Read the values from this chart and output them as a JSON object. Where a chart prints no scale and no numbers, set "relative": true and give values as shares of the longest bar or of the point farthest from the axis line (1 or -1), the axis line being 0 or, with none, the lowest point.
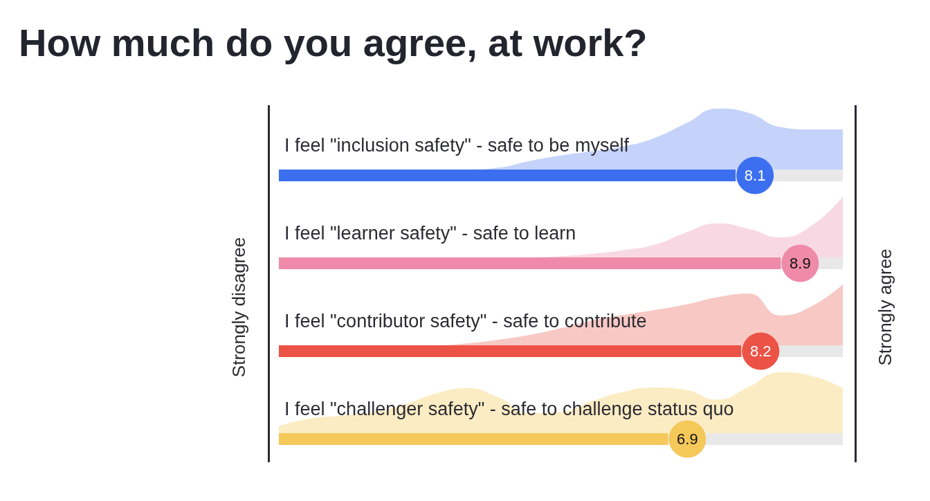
{
  "chart_data": [
    {
      "type": "bar",
      "orientation": "horizontal",
      "title": "How much do you agree, at work?",
      "ylabel": "Strongly disagree",
      "y2label": "Strongly agree",
      "categories": [
        "I feel \"inclusion safety\" - safe to be myself",
        "I feel \"learner safety\" - safe to learn",
        "I feel \"contributor safety\" - safe to contribute",
        "I feel \"challenger safety\" - safe to challenge status quo"
      ],
      "values": [
        8.1,
        8.9,
        8.2,
        6.9
      ],
      "colors": [
        "#3c6ff0",
        "#ef8aab",
        "#ec5246",
        "#f5c85a"
      ],
      "tick_labels": false,
      "data_labels": true
    },
    {
      "type": "area",
      "relative": true,
      "categories": [
        null,
        null,
        null,
        null,
        null,
        null,
        null,
        null,
        null,
        null,
        null,
        null,
        null,
        null,
        null,
        null,
        null,
        null,
        null
      ],
      "series": [
        {
          "color": "#c5d3fa",
          "values": [
            0,
            0,
            0,
            0,
            0,
            0,
            0,
            0.03,
            0.14,
            0.23,
            0.3,
            0.38,
            0.52,
            0.76,
            1,
            0.93,
            0.7,
            0.66,
            0.66
          ]
        }
      ]
    },
    {
      "type": "area",
      "relative": true,
      "categories": [
        null,
        null,
        null,
        null,
        null,
        null,
        null,
        null,
        null,
        null,
        null,
        null,
        null,
        null,
        null,
        null,
        null,
        null,
        null
      ],
      "series": [
        {
          "color": "#f8d9e3",
          "values": [
            0,
            0,
            0,
            0,
            0,
            0,
            0,
            0,
            0,
            0.02,
            0.06,
            0.12,
            0.21,
            0.41,
            0.56,
            0.47,
            0.33,
            0.52,
            1
          ]
        }
      ]
    },
    {
      "type": "area",
      "relative": true,
      "categories": [
        null,
        null,
        null,
        null,
        null,
        null,
        null,
        null,
        null,
        null,
        null,
        null,
        null,
        null,
        null,
        null,
        null,
        null,
        null
      ],
      "series": [
        {
          "color": "#f8c8c4",
          "values": [
            0,
            0,
            0,
            0,
            0,
            0,
            0.03,
            0.09,
            0.17,
            0.28,
            0.41,
            0.5,
            0.58,
            0.67,
            0.79,
            0.85,
            0.49,
            0.64,
            1
          ]
        }
      ]
    },
    {
      "type": "area",
      "relative": true,
      "categories": [
        null,
        null,
        null,
        null,
        null,
        null,
        null,
        null,
        null,
        null,
        null,
        null,
        null,
        null,
        null,
        null,
        null,
        null,
        null
      ],
      "series": [
        {
          "color": "#fbecc3",
          "values": [
            0.12,
            0.24,
            0.29,
            0.35,
            0.47,
            0.65,
            0.74,
            0.59,
            0.33,
            0.35,
            0.53,
            0.68,
            0.75,
            0.71,
            0.55,
            0.76,
            1,
            0.94,
            0.74
          ]
        }
      ]
    }
  ]
}
